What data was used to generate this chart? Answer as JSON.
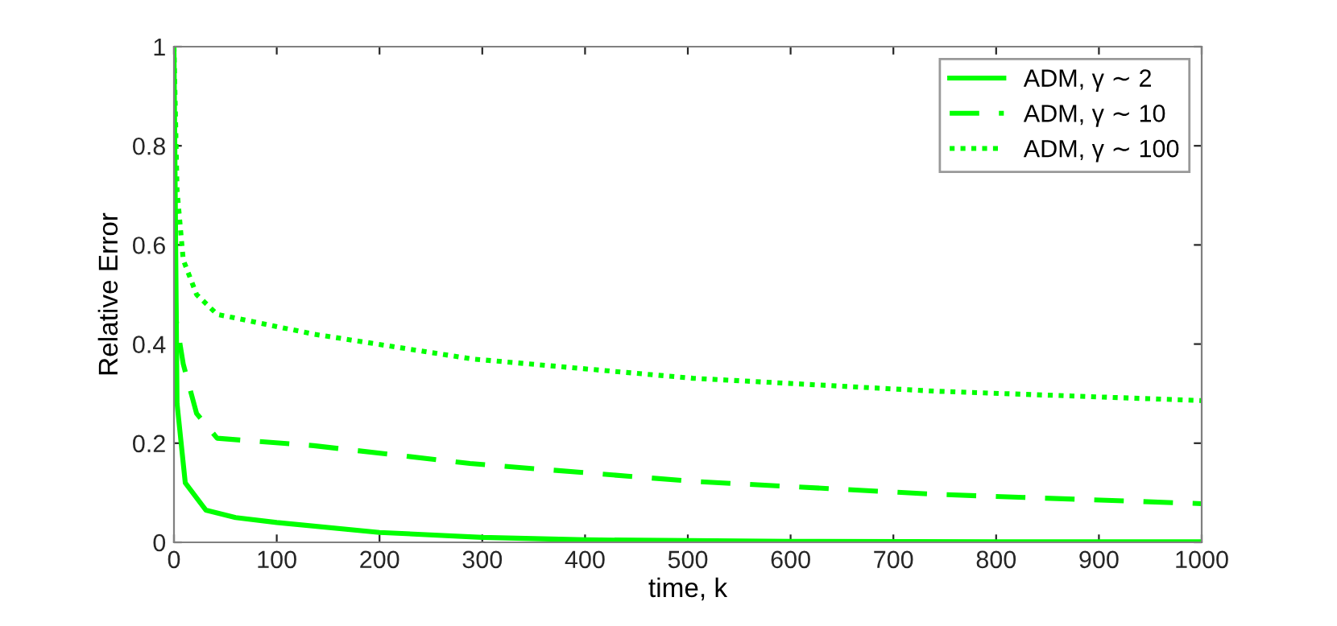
{
  "chart_data": {
    "type": "line",
    "xlabel": "time, k",
    "ylabel": "Relative Error",
    "xlim": [
      0,
      1000
    ],
    "ylim": [
      0,
      1
    ],
    "xticks": [
      0,
      100,
      200,
      300,
      400,
      500,
      600,
      700,
      800,
      900,
      1000
    ],
    "yticks": [
      0,
      0.2,
      0.4,
      0.6,
      0.8,
      1
    ],
    "grid": false,
    "legend": "top right",
    "series": [
      {
        "name": "ADM, γ ∼ 2",
        "color": "#00ff00",
        "line_style": "solid",
        "x": [
          0,
          3,
          11,
          31,
          60,
          100,
          200,
          300,
          400,
          600,
          800,
          1000
        ],
        "values": [
          1,
          0.28,
          0.12,
          0.065,
          0.05,
          0.04,
          0.02,
          0.01,
          0.005,
          0.002,
          0.001,
          0.001
        ]
      },
      {
        "name": "ADM, γ ∼ 10",
        "color": "#00ff00",
        "line_style": "dashed",
        "x": [
          0,
          2,
          9,
          22,
          42,
          136,
          288,
          505,
          740,
          1000
        ],
        "values": [
          0.6,
          0.45,
          0.36,
          0.26,
          0.21,
          0.195,
          0.159,
          0.123,
          0.097,
          0.078
        ]
      },
      {
        "name": "ADM, γ ∼ 100",
        "color": "#00ff00",
        "line_style": "dotted",
        "x": [
          0,
          3,
          9,
          22,
          42,
          136,
          290,
          505,
          740,
          1000
        ],
        "values": [
          1,
          0.71,
          0.57,
          0.5,
          0.46,
          0.42,
          0.37,
          0.331,
          0.305,
          0.286
        ]
      }
    ]
  }
}
